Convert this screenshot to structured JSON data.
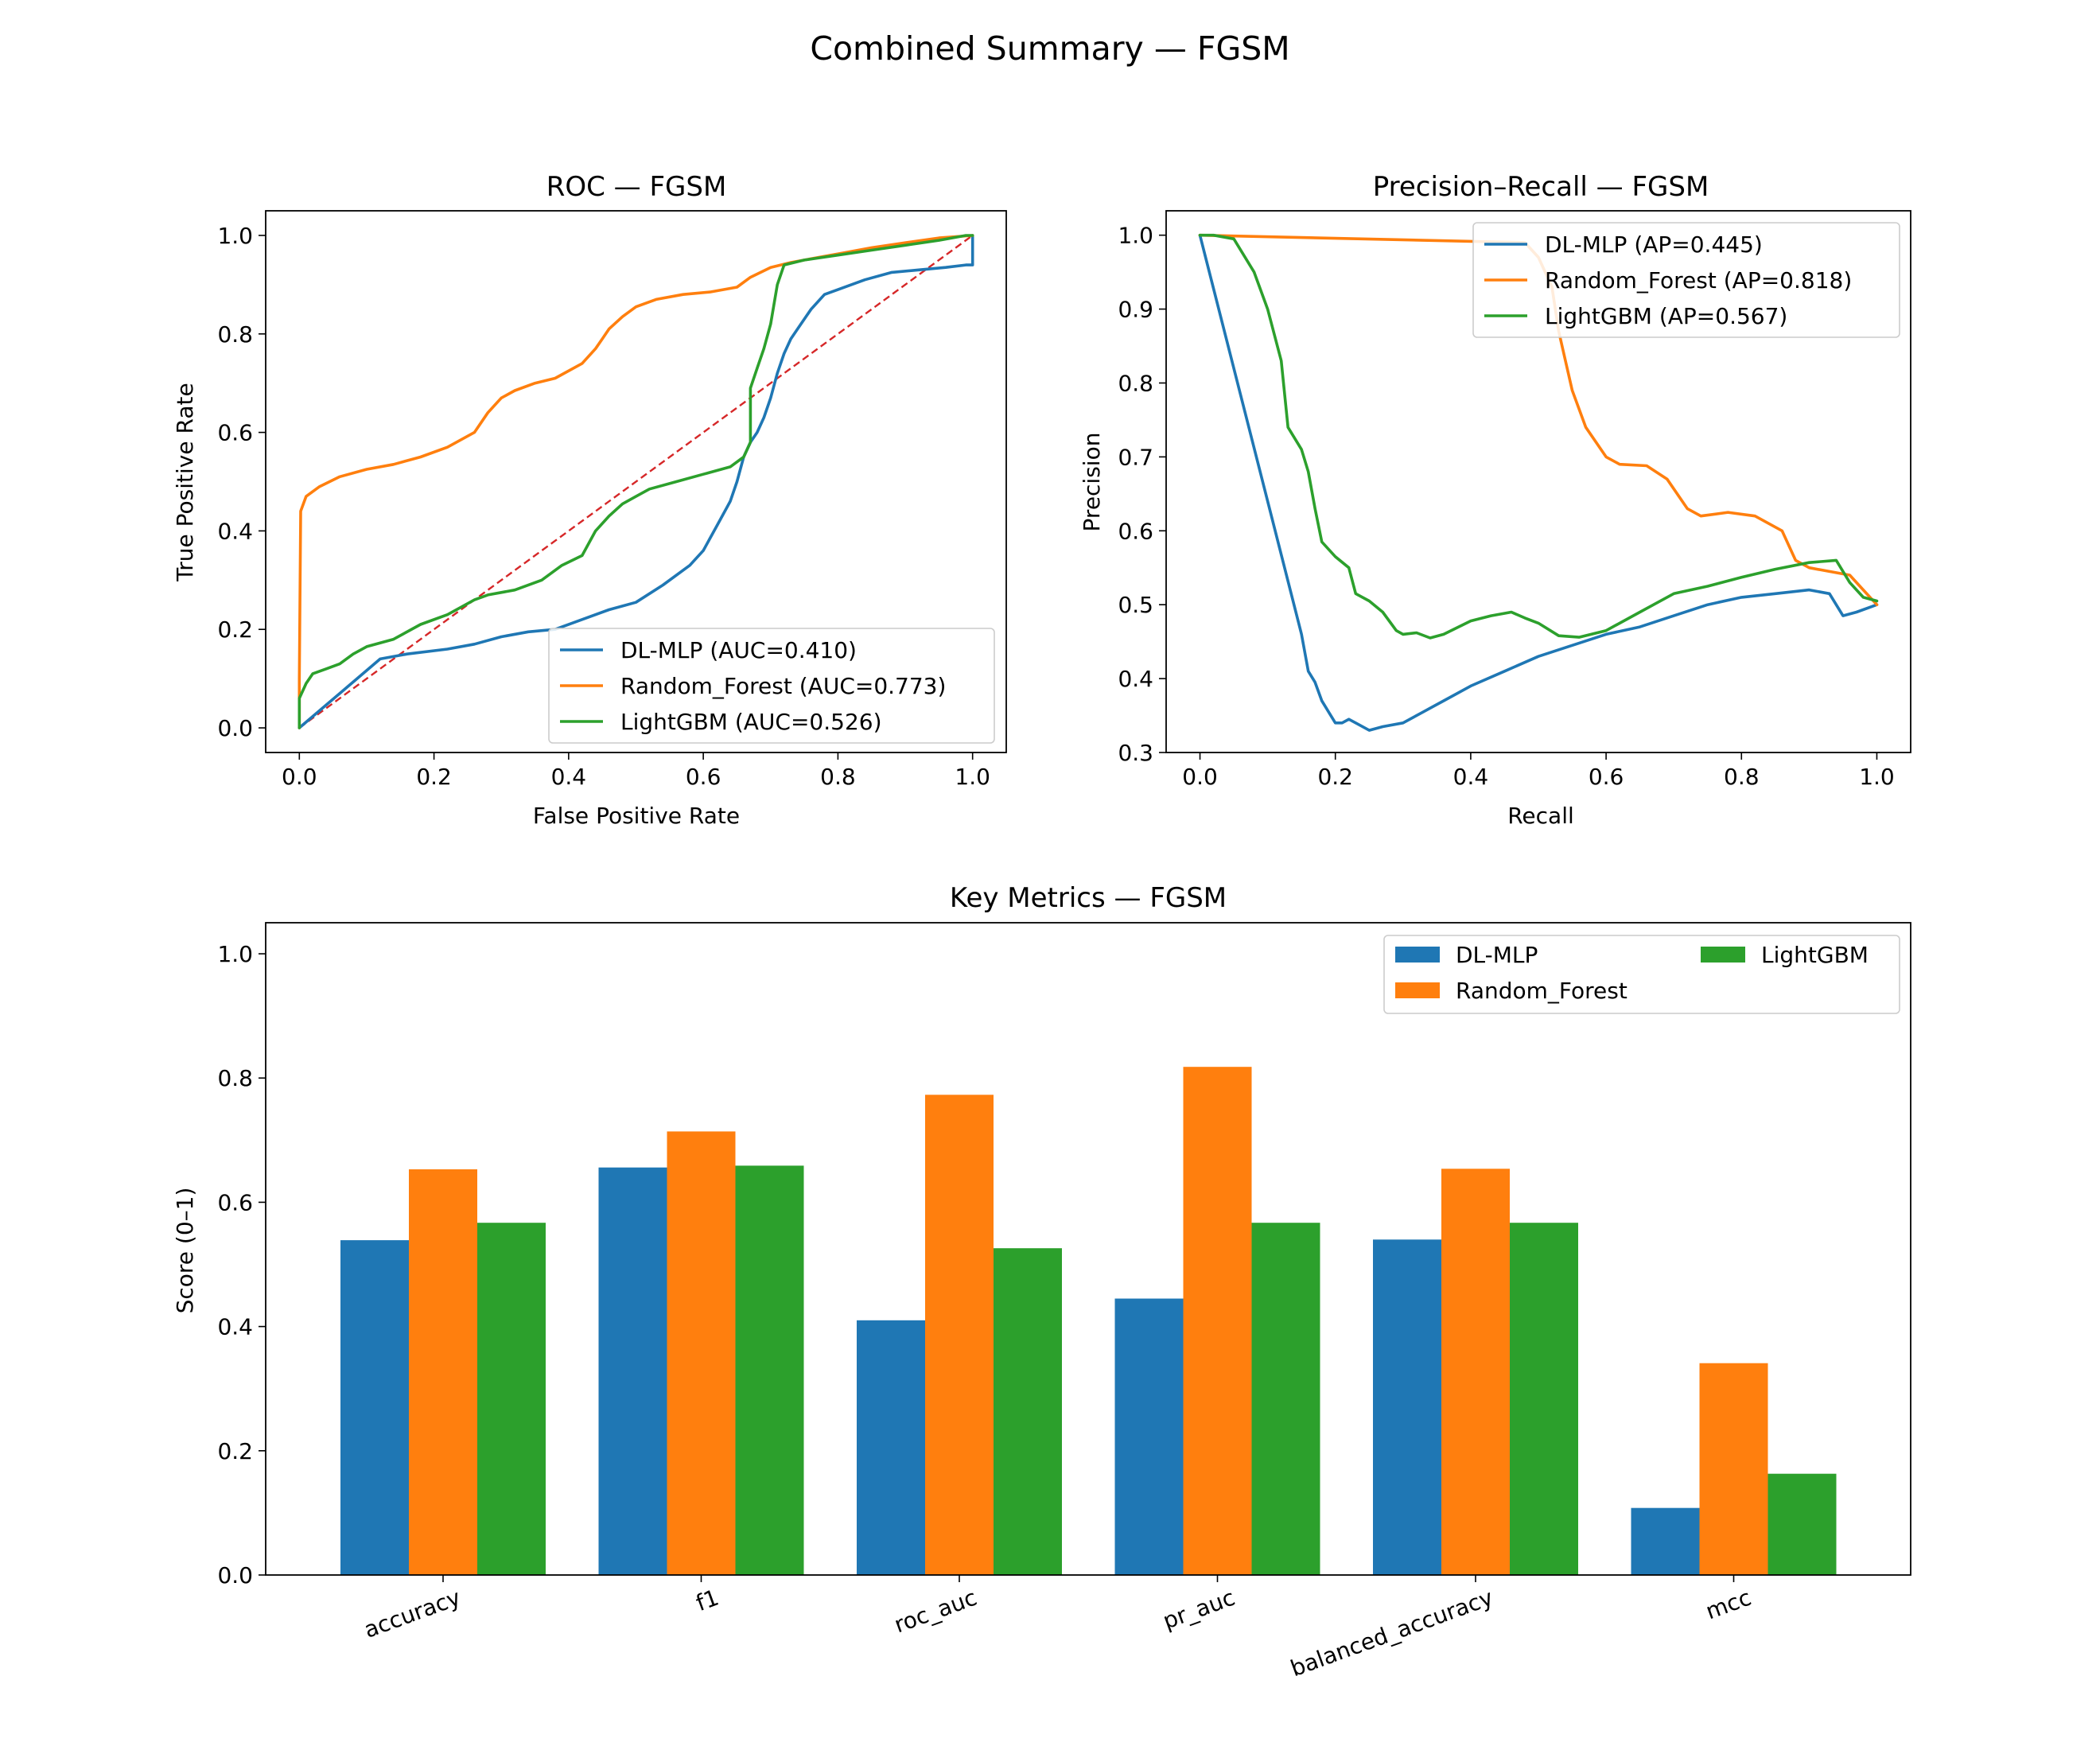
{
  "figure": {
    "title": "Combined Summary — FGSM"
  },
  "colors": {
    "DL-MLP": "#1f77b4",
    "Random_Forest": "#ff7f0e",
    "LightGBM": "#2ca02c",
    "chance_line": "#d62728"
  },
  "chart_data": [
    {
      "type": "line",
      "title": "ROC — FGSM",
      "xlabel": "False Positive Rate",
      "ylabel": "True Positive Rate",
      "xlim": [
        -0.05,
        1.05
      ],
      "ylim": [
        -0.05,
        1.05
      ],
      "xticks": [
        "0.0",
        "0.2",
        "0.4",
        "0.6",
        "0.8",
        "1.0"
      ],
      "yticks": [
        "0.0",
        "0.2",
        "0.4",
        "0.6",
        "0.8",
        "1.0"
      ],
      "grid": false,
      "legend_position": "lower-right",
      "reference_line": {
        "style": "dashed",
        "x": [
          0,
          1
        ],
        "y": [
          0,
          1
        ]
      },
      "series": [
        {
          "name": "DL-MLP (AUC=0.410)",
          "key": "DL-MLP",
          "x": [
            0,
            0.06,
            0.12,
            0.16,
            0.22,
            0.26,
            0.3,
            0.34,
            0.38,
            0.42,
            0.46,
            0.5,
            0.54,
            0.58,
            0.6,
            0.62,
            0.64,
            0.65,
            0.66,
            0.67,
            0.68,
            0.69,
            0.7,
            0.71,
            0.72,
            0.73,
            0.74,
            0.76,
            0.78,
            0.8,
            0.84,
            0.88,
            0.92,
            0.96,
            0.99,
            1.0,
            1.0
          ],
          "y": [
            0,
            0.07,
            0.14,
            0.15,
            0.16,
            0.17,
            0.185,
            0.195,
            0.2,
            0.22,
            0.24,
            0.255,
            0.29,
            0.33,
            0.36,
            0.41,
            0.46,
            0.5,
            0.55,
            0.58,
            0.6,
            0.63,
            0.67,
            0.72,
            0.76,
            0.79,
            0.81,
            0.85,
            0.88,
            0.89,
            0.91,
            0.925,
            0.93,
            0.935,
            0.94,
            0.94,
            1.0
          ]
        },
        {
          "name": "Random_Forest (AUC=0.773)",
          "key": "Random_Forest",
          "x": [
            0,
            0,
            0.002,
            0.01,
            0.03,
            0.06,
            0.1,
            0.14,
            0.18,
            0.22,
            0.26,
            0.28,
            0.3,
            0.32,
            0.35,
            0.38,
            0.42,
            0.44,
            0.45,
            0.46,
            0.48,
            0.5,
            0.53,
            0.57,
            0.61,
            0.65,
            0.67,
            0.7,
            0.73,
            0.77,
            0.81,
            0.85,
            0.9,
            0.95,
            1.0
          ],
          "y": [
            0,
            0.1,
            0.44,
            0.47,
            0.49,
            0.51,
            0.525,
            0.535,
            0.55,
            0.57,
            0.6,
            0.64,
            0.67,
            0.685,
            0.7,
            0.71,
            0.74,
            0.77,
            0.79,
            0.81,
            0.835,
            0.855,
            0.87,
            0.88,
            0.885,
            0.895,
            0.915,
            0.935,
            0.945,
            0.955,
            0.965,
            0.975,
            0.985,
            0.995,
            1.0
          ]
        },
        {
          "name": "LightGBM (AUC=0.526)",
          "key": "LightGBM",
          "x": [
            0,
            0,
            0.01,
            0.02,
            0.04,
            0.06,
            0.08,
            0.1,
            0.14,
            0.18,
            0.22,
            0.26,
            0.28,
            0.32,
            0.36,
            0.39,
            0.42,
            0.44,
            0.46,
            0.48,
            0.5,
            0.52,
            0.56,
            0.6,
            0.64,
            0.66,
            0.67,
            0.67,
            0.68,
            0.69,
            0.7,
            0.71,
            0.72,
            0.75,
            0.8,
            0.85,
            0.9,
            0.95,
            0.99,
            1.0
          ],
          "y": [
            0,
            0.06,
            0.09,
            0.11,
            0.12,
            0.13,
            0.15,
            0.165,
            0.18,
            0.21,
            0.23,
            0.26,
            0.27,
            0.28,
            0.3,
            0.33,
            0.35,
            0.4,
            0.43,
            0.455,
            0.47,
            0.485,
            0.5,
            0.515,
            0.53,
            0.55,
            0.58,
            0.69,
            0.73,
            0.77,
            0.82,
            0.9,
            0.94,
            0.95,
            0.96,
            0.97,
            0.98,
            0.99,
            1.0,
            1.0
          ]
        }
      ]
    },
    {
      "type": "line",
      "title": "Precision–Recall — FGSM",
      "xlabel": "Recall",
      "ylabel": "Precision",
      "xlim": [
        -0.05,
        1.05
      ],
      "ylim": [
        0.3,
        1.033
      ],
      "xticks": [
        "0.0",
        "0.2",
        "0.4",
        "0.6",
        "0.8",
        "1.0"
      ],
      "yticks": [
        "0.3",
        "0.4",
        "0.5",
        "0.6",
        "0.7",
        "0.8",
        "0.9",
        "1.0"
      ],
      "grid": false,
      "legend_position": "upper-right",
      "series": [
        {
          "name": "DL-MLP (AP=0.445)",
          "key": "DL-MLP",
          "x": [
            0,
            0.15,
            0.16,
            0.17,
            0.18,
            0.19,
            0.2,
            0.21,
            0.22,
            0.23,
            0.25,
            0.27,
            0.3,
            0.33,
            0.36,
            0.4,
            0.45,
            0.5,
            0.55,
            0.6,
            0.65,
            0.7,
            0.75,
            0.8,
            0.85,
            0.9,
            0.93,
            0.95,
            0.97,
            1.0
          ],
          "y": [
            1.0,
            0.46,
            0.41,
            0.395,
            0.37,
            0.355,
            0.34,
            0.34,
            0.345,
            0.34,
            0.33,
            0.335,
            0.34,
            0.355,
            0.37,
            0.39,
            0.41,
            0.43,
            0.445,
            0.46,
            0.47,
            0.485,
            0.5,
            0.51,
            0.515,
            0.52,
            0.515,
            0.485,
            0.49,
            0.5
          ]
        },
        {
          "name": "Random_Forest (AP=0.818)",
          "key": "Random_Forest",
          "x": [
            0,
            0.48,
            0.5,
            0.52,
            0.53,
            0.55,
            0.57,
            0.6,
            0.62,
            0.66,
            0.69,
            0.72,
            0.74,
            0.78,
            0.82,
            0.86,
            0.88,
            0.9,
            0.93,
            0.96,
            0.98,
            1.0
          ],
          "y": [
            1.0,
            0.99,
            0.97,
            0.93,
            0.87,
            0.79,
            0.74,
            0.7,
            0.69,
            0.688,
            0.67,
            0.63,
            0.62,
            0.625,
            0.62,
            0.6,
            0.56,
            0.55,
            0.545,
            0.54,
            0.52,
            0.5
          ]
        },
        {
          "name": "LightGBM (AP=0.567)",
          "key": "LightGBM",
          "x": [
            0,
            0.02,
            0.05,
            0.08,
            0.1,
            0.12,
            0.13,
            0.15,
            0.16,
            0.17,
            0.18,
            0.2,
            0.22,
            0.23,
            0.25,
            0.27,
            0.29,
            0.3,
            0.32,
            0.34,
            0.36,
            0.4,
            0.43,
            0.46,
            0.48,
            0.5,
            0.53,
            0.56,
            0.6,
            0.65,
            0.7,
            0.75,
            0.8,
            0.85,
            0.9,
            0.94,
            0.96,
            0.98,
            1.0
          ],
          "y": [
            1.0,
            1.0,
            0.995,
            0.95,
            0.9,
            0.83,
            0.74,
            0.71,
            0.68,
            0.63,
            0.585,
            0.565,
            0.55,
            0.515,
            0.505,
            0.49,
            0.465,
            0.46,
            0.462,
            0.455,
            0.46,
            0.478,
            0.485,
            0.49,
            0.482,
            0.475,
            0.458,
            0.456,
            0.465,
            0.49,
            0.515,
            0.525,
            0.537,
            0.548,
            0.557,
            0.56,
            0.53,
            0.51,
            0.505
          ]
        }
      ]
    },
    {
      "type": "bar",
      "title": "Key Metrics — FGSM",
      "xlabel": "",
      "ylabel": "Score (0–1)",
      "ylim": [
        0,
        1.05
      ],
      "yticks": [
        "0.0",
        "0.2",
        "0.4",
        "0.6",
        "0.8",
        "1.0"
      ],
      "grid": false,
      "legend_position": "upper-right",
      "legend_columns": 2,
      "categories": [
        "accuracy",
        "f1",
        "roc_auc",
        "pr_auc",
        "balanced_accuracy",
        "mcc"
      ],
      "series": [
        {
          "name": "DL-MLP",
          "key": "DL-MLP",
          "values": [
            0.539,
            0.656,
            0.41,
            0.445,
            0.54,
            0.108
          ]
        },
        {
          "name": "Random_Forest",
          "key": "Random_Forest",
          "values": [
            0.653,
            0.714,
            0.773,
            0.818,
            0.654,
            0.341
          ]
        },
        {
          "name": "LightGBM",
          "key": "LightGBM",
          "values": [
            0.567,
            0.659,
            0.526,
            0.567,
            0.567,
            0.163
          ]
        }
      ]
    }
  ]
}
